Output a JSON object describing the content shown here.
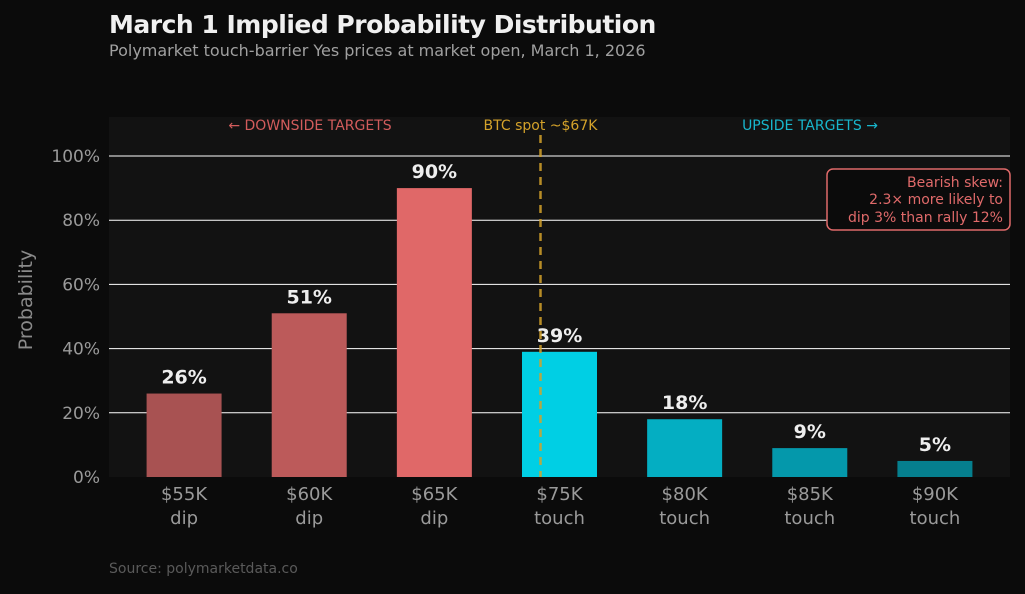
{
  "header": {
    "title": "March 1 Implied Probability Distribution",
    "subtitle": "Polymarket touch-barrier Yes prices at market open, March 1, 2026"
  },
  "footer": {
    "source": "Source: polymarketdata.co"
  },
  "chart_data": {
    "type": "bar",
    "title": "March 1 Implied Probability Distribution",
    "subtitle": "Polymarket touch-barrier Yes prices at market open, March 1, 2026",
    "xlabel": "",
    "ylabel": "Probability",
    "ylim": [
      0,
      1.1
    ],
    "yticks": [
      0,
      0.2,
      0.4,
      0.6,
      0.8,
      1.0
    ],
    "ytick_labels": [
      "0%",
      "20%",
      "40%",
      "60%",
      "80%",
      "100%"
    ],
    "grid": true,
    "categories": [
      {
        "line1": "$55K",
        "line2": "dip"
      },
      {
        "line1": "$60K",
        "line2": "dip"
      },
      {
        "line1": "$65K",
        "line2": "dip"
      },
      {
        "line1": "$75K",
        "line2": "touch"
      },
      {
        "line1": "$80K",
        "line2": "touch"
      },
      {
        "line1": "$85K",
        "line2": "touch"
      },
      {
        "line1": "$90K",
        "line2": "touch"
      }
    ],
    "values": [
      0.26,
      0.51,
      0.9,
      0.39,
      0.18,
      0.09,
      0.05
    ],
    "data_labels": [
      "26%",
      "51%",
      "90%",
      "39%",
      "18%",
      "9%",
      "5%"
    ],
    "bar_colors": [
      "#a85252",
      "#bc5a5a",
      "#e06868",
      "#00cfe4",
      "#04aec2",
      "#0498ab",
      "#057f8e"
    ],
    "spot_line": {
      "label": "BTC spot ~$67K",
      "color": "#d4a22a",
      "position_between": [
        3,
        4
      ],
      "note": "dashed vertical line near $75K bar"
    },
    "region_labels": [
      {
        "text": "← DOWNSIDE TARGETS",
        "color": "#d25c5c"
      },
      {
        "text": "UPSIDE TARGETS →",
        "color": "#18b6cc"
      }
    ],
    "annotation": {
      "lines": [
        "Bearish skew:",
        "2.3× more likely to",
        "dip 3% than rally 12%"
      ],
      "color": "#e06a6a",
      "placement": "top-right"
    },
    "source": "Source: polymarketdata.co"
  },
  "colors": {
    "background": "#0b0b0b",
    "plot_background": "#121212",
    "grid": "#ffffff"
  }
}
